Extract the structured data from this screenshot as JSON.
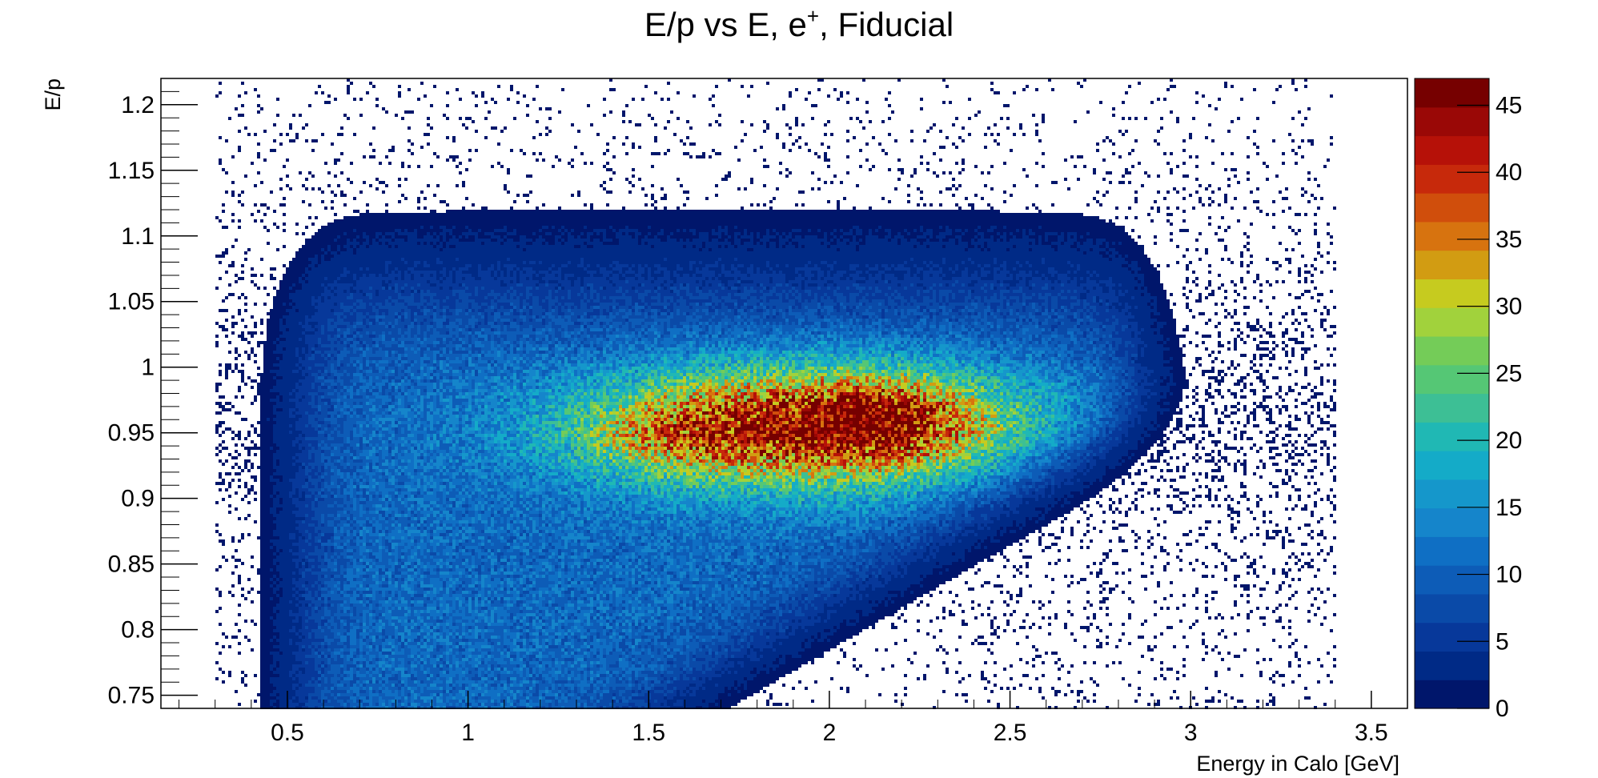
{
  "chart_data": {
    "type": "heatmap",
    "title": "E/p vs E, e",
    "title_superscript": "+",
    "title_suffix": ", Fiducial",
    "xlabel": "Energy in Calo [GeV]",
    "ylabel": "E/p",
    "xlim": [
      0.15,
      3.6
    ],
    "ylim": [
      0.74,
      1.22
    ],
    "x_ticks": [
      0.5,
      1,
      1.5,
      2,
      2.5,
      3,
      3.5
    ],
    "x_tick_labels": [
      "0.5",
      "1",
      "1.5",
      "2",
      "2.5",
      "3",
      "3.5"
    ],
    "y_ticks": [
      0.75,
      0.8,
      0.85,
      0.9,
      0.95,
      1,
      1.05,
      1.1,
      1.15,
      1.2
    ],
    "y_tick_labels": [
      "0.75",
      "0.8",
      "0.85",
      "0.9",
      "0.95",
      "1",
      "1.05",
      "1.1",
      "1.15",
      "1.2"
    ],
    "colorbar": {
      "zlim": [
        0,
        47
      ],
      "ticks": [
        0,
        5,
        10,
        15,
        20,
        25,
        30,
        35,
        40,
        45
      ],
      "tick_labels": [
        "0",
        "5",
        "10",
        "15",
        "20",
        "25",
        "30",
        "35",
        "40",
        "45"
      ],
      "colors": [
        "#00166b",
        "#002a86",
        "#07389a",
        "#0a4aa8",
        "#0d5cb7",
        "#0f6fc4",
        "#1585cb",
        "#1597cb",
        "#14abc8",
        "#20b8b4",
        "#3dbf95",
        "#55c775",
        "#74cc58",
        "#a1d23c",
        "#c6cb1f",
        "#d29c12",
        "#d7730f",
        "#d04e0c",
        "#c7290b",
        "#b61108",
        "#9a0806",
        "#760000"
      ]
    },
    "distribution": {
      "description_points": [
        {
          "x": 1.85,
          "y": 0.955,
          "peak_z": 45
        },
        {
          "x": 2.15,
          "y": 0.96,
          "peak_z": 45
        },
        {
          "x": 1.5,
          "y": 0.945,
          "peak_z": 35
        }
      ]
    }
  }
}
